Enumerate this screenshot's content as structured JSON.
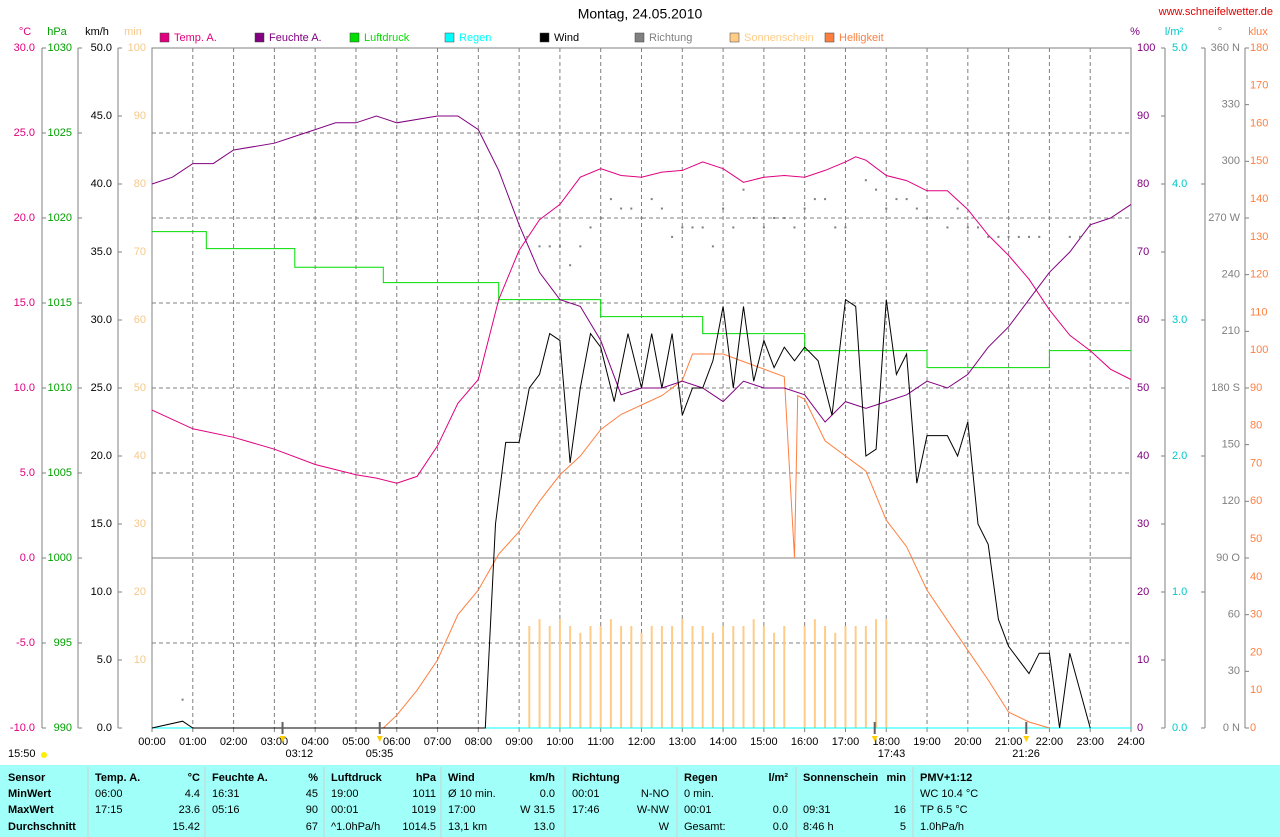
{
  "chart_data": {
    "type": "line",
    "title": "Montag, 24.05.2010",
    "source": "www.schneifelwetter.de",
    "grid": true,
    "xlim": [
      0,
      24
    ],
    "xticks": [
      {
        "value": 0,
        "label": "00:00"
      },
      {
        "value": 1,
        "label": "01:00"
      },
      {
        "value": 2,
        "label": "02:00"
      },
      {
        "value": 3,
        "label": "03:00"
      },
      {
        "value": 4,
        "label": "04:00"
      },
      {
        "value": 5,
        "label": "05:00"
      },
      {
        "value": 6,
        "label": "06:00"
      },
      {
        "value": 7,
        "label": "07:00"
      },
      {
        "value": 8,
        "label": "08:00"
      },
      {
        "value": 9,
        "label": "09:00"
      },
      {
        "value": 10,
        "label": "10:00"
      },
      {
        "value": 11,
        "label": "11:00"
      },
      {
        "value": 12,
        "label": "12:00"
      },
      {
        "value": 13,
        "label": "13:00"
      },
      {
        "value": 14,
        "label": "14:00"
      },
      {
        "value": 15,
        "label": "15:00"
      },
      {
        "value": 16,
        "label": "16:00"
      },
      {
        "value": 17,
        "label": "17:00"
      },
      {
        "value": 18,
        "label": "18:00"
      },
      {
        "value": 19,
        "label": "19:00"
      },
      {
        "value": 20,
        "label": "20:00"
      },
      {
        "value": 21,
        "label": "21:00"
      },
      {
        "value": 22,
        "label": "22:00"
      },
      {
        "value": 23,
        "label": "23:00"
      },
      {
        "value": 24,
        "label": "24:00"
      }
    ],
    "axes": [
      {
        "unit": "°C",
        "color": "#e0007f",
        "lim": [
          -10,
          30
        ],
        "ticks": [
          {
            "value": -10,
            "label": "-10.0"
          },
          {
            "value": -5,
            "label": "-5.0"
          },
          {
            "value": 0,
            "label": "0.0"
          },
          {
            "value": 5,
            "label": "5.0"
          },
          {
            "value": 10,
            "label": "10.0"
          },
          {
            "value": 15,
            "label": "15.0"
          },
          {
            "value": 20,
            "label": "20.0"
          },
          {
            "value": 25,
            "label": "25.0"
          },
          {
            "value": 30,
            "label": "30.0"
          }
        ]
      },
      {
        "unit": "hPa",
        "color": "#00a000",
        "lim": [
          990,
          1030
        ],
        "ticks": [
          990,
          995,
          1000,
          1005,
          1010,
          1015,
          1020,
          1025,
          1030
        ]
      },
      {
        "unit": "km/h",
        "color": "#000000",
        "lim": [
          0,
          50
        ],
        "ticks": [
          {
            "value": 0,
            "label": "0.0"
          },
          {
            "value": 5,
            "label": "5.0"
          },
          {
            "value": 10,
            "label": "10.0"
          },
          {
            "value": 15,
            "label": "15.0"
          },
          {
            "value": 20,
            "label": "20.0"
          },
          {
            "value": 25,
            "label": "25.0"
          },
          {
            "value": 30,
            "label": "30.0"
          },
          {
            "value": 35,
            "label": "35.0"
          },
          {
            "value": 40,
            "label": "40.0"
          },
          {
            "value": 45,
            "label": "45.0"
          },
          {
            "value": 50,
            "label": "50.0"
          }
        ]
      },
      {
        "unit": "min",
        "color": "#f5c88a",
        "lim": [
          0,
          100
        ],
        "ticks": [
          10,
          20,
          30,
          40,
          50,
          60,
          70,
          80,
          90,
          100
        ]
      },
      {
        "unit": "%",
        "color": "#800080",
        "lim": [
          0,
          100
        ],
        "ticks": [
          0,
          10,
          20,
          30,
          40,
          50,
          60,
          70,
          80,
          90,
          100
        ]
      },
      {
        "unit": "l/m²",
        "color": "#00c8c8",
        "lim": [
          0,
          5
        ],
        "ticks": [
          {
            "value": 0,
            "label": "0.0"
          },
          {
            "value": 1,
            "label": "1.0"
          },
          {
            "value": 2,
            "label": "2.0"
          },
          {
            "value": 3,
            "label": "3.0"
          },
          {
            "value": 4,
            "label": "4.0"
          },
          {
            "value": 5,
            "label": "5.0"
          }
        ]
      },
      {
        "unit": "°",
        "color": "#808080",
        "lim": [
          0,
          360
        ],
        "ticks": [
          {
            "value": 0,
            "label": "0 N"
          },
          30,
          60,
          {
            "value": 90,
            "label": "90 O"
          },
          120,
          150,
          {
            "value": 180,
            "label": "180 S"
          },
          210,
          240,
          {
            "value": 270,
            "label": "270 W"
          },
          300,
          330,
          {
            "value": 360,
            "label": "360 N"
          }
        ]
      },
      {
        "unit": "klux",
        "color": "#ff7f3f",
        "lim": [
          0,
          180
        ],
        "ticks": [
          0,
          10,
          20,
          30,
          40,
          50,
          60,
          70,
          80,
          90,
          100,
          110,
          120,
          130,
          140,
          150,
          160,
          170,
          180
        ]
      }
    ],
    "series": [
      {
        "name": "Temp. A.",
        "color": "#e0007f",
        "axis": 0,
        "kind": "line",
        "x": [
          0,
          1,
          2,
          3,
          4,
          5,
          5.5,
          6,
          6.5,
          7,
          7.5,
          8,
          8.5,
          9,
          9.5,
          10,
          10.5,
          11,
          11.5,
          12,
          12.5,
          13,
          13.5,
          14,
          14.5,
          15,
          15.5,
          16,
          16.5,
          17,
          17.25,
          17.5,
          18,
          18.5,
          19,
          19.5,
          20,
          20.5,
          21,
          21.5,
          22,
          22.5,
          23,
          23.5,
          24
        ],
        "values": [
          8.7,
          7.6,
          7.1,
          6.4,
          5.5,
          4.9,
          4.7,
          4.4,
          4.8,
          6.6,
          9.1,
          10.5,
          15.2,
          18.1,
          19.9,
          20.8,
          22.4,
          22.9,
          22.5,
          22.4,
          22.7,
          22.8,
          23.3,
          22.9,
          22.1,
          22.4,
          22.5,
          22.4,
          22.8,
          23.3,
          23.6,
          23.4,
          22.5,
          22.2,
          21.6,
          21.6,
          20.5,
          19,
          17.8,
          16.4,
          14.6,
          13.1,
          12.2,
          11.1,
          10.5
        ]
      },
      {
        "name": "Feuchte A.",
        "color": "#800080",
        "axis": 4,
        "kind": "line",
        "x": [
          0,
          0.5,
          1,
          1.5,
          2,
          3,
          3.5,
          4,
          4.5,
          5,
          5.5,
          6,
          7,
          7.5,
          8,
          8.5,
          9,
          9.5,
          10,
          10.5,
          11,
          11.5,
          12,
          12.5,
          13,
          13.5,
          14,
          14.5,
          15,
          15.5,
          16,
          16.5,
          17,
          17.5,
          18,
          18.5,
          19,
          19.5,
          20,
          20.5,
          21,
          21.5,
          22,
          22.5,
          23,
          23.5,
          24
        ],
        "values": [
          80,
          81,
          83,
          83,
          85,
          86,
          87,
          88,
          89,
          89,
          90,
          89,
          90,
          90,
          88,
          82,
          74,
          67,
          63,
          62,
          57,
          49,
          50,
          50,
          51,
          50,
          48,
          51,
          50,
          50,
          49,
          45,
          48,
          47,
          48,
          49,
          51,
          50,
          52,
          56,
          59,
          63,
          67,
          70,
          74,
          75,
          77
        ]
      },
      {
        "name": "Luftdruck",
        "color": "#00dd00",
        "axis": 1,
        "kind": "line",
        "x": [
          0,
          1.33,
          1.33,
          3.5,
          3.5,
          5.67,
          5.67,
          8.5,
          8.5,
          11,
          11,
          13.5,
          13.5,
          16,
          16,
          19,
          19,
          22,
          22,
          24
        ],
        "values": [
          1019.2,
          1019.2,
          1018.2,
          1018.2,
          1017.1,
          1017.1,
          1016.2,
          1016.2,
          1015.2,
          1015.2,
          1014.2,
          1014.2,
          1013.2,
          1013.2,
          1012.2,
          1012.2,
          1011.2,
          1011.2,
          1012.2,
          1012.2
        ]
      },
      {
        "name": "Regen",
        "color": "#00ffff",
        "axis": 5,
        "kind": "line",
        "x": [
          0,
          24
        ],
        "values": [
          0,
          0
        ]
      },
      {
        "name": "Wind",
        "color": "#000000",
        "axis": 2,
        "kind": "line",
        "x": [
          0,
          0.75,
          1,
          8.17,
          8.42,
          8.67,
          9,
          9.25,
          9.5,
          9.75,
          10,
          10.25,
          10.5,
          10.75,
          11,
          11.33,
          11.67,
          12,
          12.25,
          12.5,
          12.75,
          13,
          13.25,
          13.5,
          13.75,
          14,
          14.25,
          14.5,
          14.75,
          15,
          15.25,
          15.5,
          15.75,
          16,
          16.33,
          16.67,
          17,
          17.25,
          17.5,
          17.75,
          18,
          18.25,
          18.5,
          18.75,
          19,
          19.5,
          19.75,
          20,
          20.25,
          20.5,
          20.75,
          21,
          21.5,
          21.75,
          22,
          22.25,
          22.5,
          23
        ],
        "values": [
          0,
          0.5,
          0,
          0,
          15,
          21,
          21,
          25,
          26,
          29,
          28.5,
          19.5,
          25,
          29,
          28,
          24,
          29,
          25,
          29,
          25,
          29,
          23,
          25,
          25,
          27,
          31,
          25,
          31,
          25.5,
          28.5,
          26.5,
          28,
          27,
          28,
          27,
          23,
          31.5,
          31,
          20,
          20.5,
          31.5,
          26,
          27.5,
          18,
          21.5,
          21.5,
          20,
          22.5,
          15,
          13.5,
          8,
          6,
          4,
          5.5,
          5.5,
          0,
          5.5,
          0
        ]
      },
      {
        "name": "Richtung",
        "color": "#808080",
        "axis": 6,
        "kind": "dots",
        "x": [
          0.75,
          9.2,
          9.5,
          9.75,
          10,
          10.25,
          10.5,
          10.75,
          11,
          11.25,
          11.5,
          11.75,
          12,
          12.25,
          12.5,
          12.75,
          13,
          13.25,
          13.5,
          13.75,
          14,
          14.25,
          14.5,
          14.75,
          15,
          15.25,
          15.5,
          15.75,
          16,
          16.25,
          16.5,
          16.75,
          17,
          17.5,
          17.75,
          18,
          18.25,
          18.5,
          18.75,
          19,
          19.5,
          19.75,
          20,
          20.25,
          20.5,
          20.75,
          21,
          21.25,
          21.5,
          21.75,
          22.5,
          22.75
        ],
        "values": [
          15,
          260,
          255,
          255,
          255,
          245,
          255,
          265,
          270,
          280,
          275,
          275,
          270,
          280,
          275,
          260,
          265,
          265,
          265,
          255,
          275,
          265,
          285,
          270,
          265,
          270,
          270,
          265,
          275,
          280,
          280,
          265,
          265,
          290,
          285,
          275,
          280,
          280,
          275,
          270,
          265,
          275,
          265,
          265,
          260,
          260,
          260,
          260,
          260,
          260,
          260,
          260
        ]
      },
      {
        "name": "Sonnenschein",
        "color": "#ffcc88",
        "axis": 3,
        "kind": "bars",
        "x": [
          9.25,
          9.5,
          9.75,
          10,
          10.25,
          10.5,
          10.75,
          11,
          11.25,
          11.5,
          11.75,
          12,
          12.25,
          12.5,
          12.75,
          13,
          13.25,
          13.5,
          13.75,
          14,
          14.25,
          14.5,
          14.75,
          15,
          15.25,
          15.5,
          16,
          16.25,
          16.5,
          16.75,
          17,
          17.25,
          17.5,
          17.75,
          18
        ],
        "values": [
          15,
          16,
          15,
          16,
          15,
          14,
          15,
          15,
          16,
          15,
          15,
          14,
          15,
          15,
          15,
          16,
          15,
          15,
          14,
          15,
          15,
          15,
          16,
          15,
          14,
          15,
          15,
          16,
          15,
          14,
          15,
          15,
          15,
          16,
          16
        ]
      },
      {
        "name": "Helligkeit",
        "color": "#ff7f3f",
        "axis": 7,
        "kind": "line",
        "x": [
          5.67,
          6,
          6.5,
          7,
          7.5,
          8,
          8.5,
          9,
          9.5,
          10,
          10.5,
          11,
          11.5,
          12,
          12.5,
          13,
          13.25,
          13.5,
          14,
          14.5,
          15,
          15.5,
          15.75,
          15.83,
          16,
          16.5,
          17,
          17.5,
          18,
          18.5,
          19,
          19.5,
          20,
          20.5,
          21,
          21.5,
          22
        ],
        "values": [
          0,
          3.4,
          10,
          18,
          30,
          36.5,
          46,
          52,
          60,
          67,
          72,
          79,
          83,
          85.5,
          88,
          92,
          99,
          99,
          99,
          97,
          95,
          93,
          45,
          88,
          87,
          76,
          72,
          68,
          55,
          48,
          36.5,
          28.5,
          20.6,
          12.7,
          4.2,
          1.6,
          0
        ]
      }
    ],
    "time_label": "15:50",
    "annotations": [
      {
        "x": 3.2,
        "label": "03:12"
      },
      {
        "x": 5.583,
        "label": "05:35"
      },
      {
        "x": 17.717,
        "label": "17:43"
      },
      {
        "x": 21.433,
        "label": "21:26"
      }
    ]
  },
  "stats": {
    "row_labels": [
      "Sensor",
      "MinWert",
      "MaxWert",
      "Durchschnitt"
    ],
    "columns": [
      {
        "cells": [
          {
            "left": "Temp. A.",
            "right": "°C"
          },
          {
            "left": "06:00",
            "right": "4.4"
          },
          {
            "left": "17:15",
            "right": "23.6"
          },
          {
            "right": "15.42"
          }
        ]
      },
      {
        "cells": [
          {
            "left": "Feuchte A.",
            "right": "%"
          },
          {
            "left": "16:31",
            "right": "45"
          },
          {
            "left": "05:16",
            "right": "90"
          },
          {
            "right": "67"
          }
        ]
      },
      {
        "cells": [
          {
            "left": "Luftdruck",
            "right": "hPa"
          },
          {
            "left": "19:00",
            "right": "1011"
          },
          {
            "left": "00:01",
            "right": "1019"
          },
          {
            "left": "^1.0hPa/h",
            "right": "1014.5"
          }
        ]
      },
      {
        "cells": [
          {
            "left": "Wind",
            "right": "km/h"
          },
          {
            "left": "Ø 10 min.",
            "right": "0.0"
          },
          {
            "left": "17:00",
            "right": "W 31.5"
          },
          {
            "left": "13,1 km",
            "right": "13.0"
          }
        ]
      },
      {
        "cells": [
          {
            "left": "Richtung"
          },
          {
            "left": "00:01",
            "right": "N-NO"
          },
          {
            "left": "17:46",
            "right": "W-NW"
          },
          {
            "right": "W"
          }
        ]
      },
      {
        "cells": [
          {
            "left": "Regen",
            "right": "l/m²"
          },
          {
            "left": "0 min."
          },
          {
            "left": "00:01",
            "right": "0.0"
          },
          {
            "left": "Gesamt:",
            "right": "0.0"
          }
        ]
      },
      {
        "cells": [
          {
            "left": "Sonnenschein",
            "right": "min"
          },
          {},
          {
            "left": "09:31",
            "right": "16"
          },
          {
            "left": "8:46 h",
            "right": "5"
          }
        ]
      },
      {
        "cells": [
          {
            "left": "PMV+1:12"
          },
          {
            "left": "WC 10.4 °C"
          },
          {
            "left": "TP 6.5 °C"
          },
          {
            "left": "1.0hPa/h"
          }
        ]
      }
    ]
  }
}
